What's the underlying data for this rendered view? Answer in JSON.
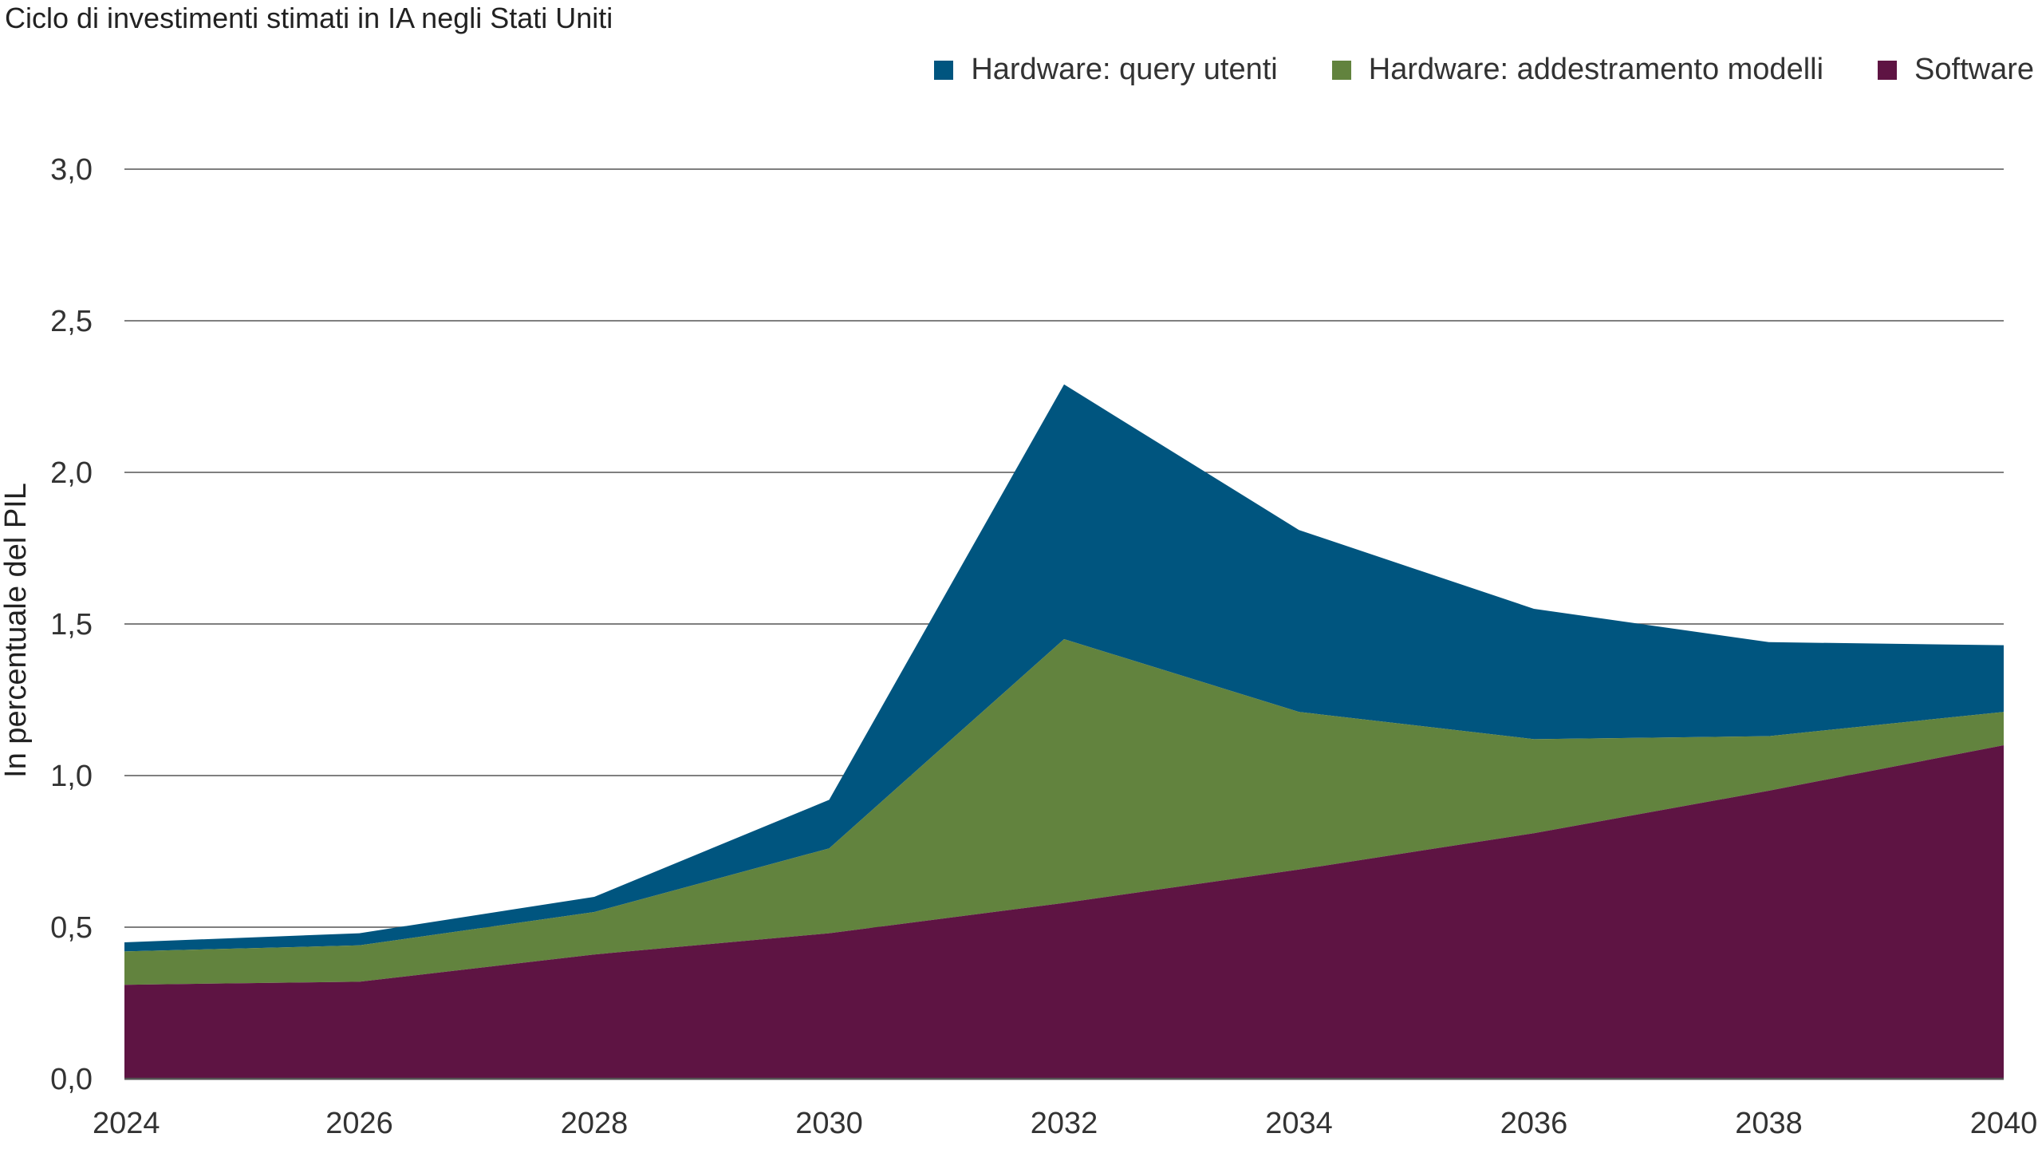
{
  "chart_data": {
    "type": "area",
    "stacked": true,
    "title": "Ciclo di investimenti stimati in IA negli Stati Uniti",
    "xlabel": "",
    "ylabel": "In percentuale del PIL",
    "x": [
      2024,
      2026,
      2028,
      2030,
      2032,
      2034,
      2036,
      2038,
      2040
    ],
    "x_ticks": [
      "2024",
      "2026",
      "2028",
      "2030",
      "2032",
      "2034",
      "2036",
      "2038",
      "2040"
    ],
    "xlim": [
      2024,
      2040
    ],
    "ylim": [
      0,
      3.0
    ],
    "y_ticks": [
      "0,0",
      "0,5",
      "1,0",
      "1,5",
      "2,0",
      "2,5",
      "3,0"
    ],
    "y_tick_values": [
      0,
      0.5,
      1.0,
      1.5,
      2.0,
      2.5,
      3.0
    ],
    "grid": "horizontal",
    "legend_position": "top-right",
    "legend_order": [
      0,
      1,
      2
    ],
    "series": [
      {
        "name": "Hardware: query utenti",
        "color": "#00557F",
        "values": [
          0.03,
          0.04,
          0.05,
          0.16,
          0.84,
          0.6,
          0.43,
          0.31,
          0.22
        ]
      },
      {
        "name": "Hardware: addestramento modelli",
        "color": "#62833E",
        "values": [
          0.11,
          0.12,
          0.14,
          0.28,
          0.87,
          0.52,
          0.31,
          0.18,
          0.11
        ]
      },
      {
        "name": "Software",
        "color": "#5E1443",
        "values": [
          0.31,
          0.32,
          0.41,
          0.48,
          0.58,
          0.69,
          0.81,
          0.95,
          1.1
        ]
      }
    ]
  }
}
